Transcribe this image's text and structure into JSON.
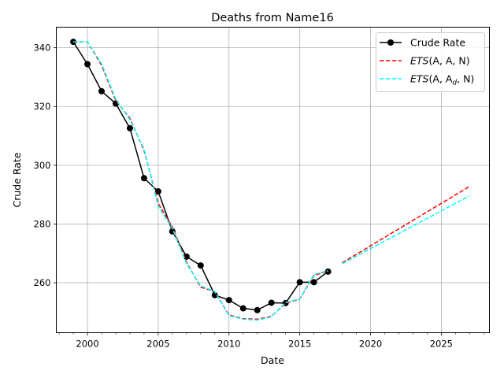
{
  "chart_data": {
    "type": "line",
    "title": "Deaths from Name16",
    "xlabel": "Date",
    "ylabel": "Crude Rate",
    "xlim": [
      1997.8,
      2028.4
    ],
    "ylim": [
      243,
      347
    ],
    "xticks": [
      2000,
      2005,
      2010,
      2015,
      2020,
      2025
    ],
    "yticks": [
      260,
      280,
      300,
      320,
      340
    ],
    "grid": true,
    "legend_position": "top-right",
    "series": [
      {
        "name": "Crude Rate",
        "color": "#000000",
        "style": "solid-markers",
        "x": [
          1999,
          2000,
          2001,
          2002,
          2003,
          2004,
          2005,
          2006,
          2007,
          2008,
          2009,
          2010,
          2011,
          2012,
          2013,
          2014,
          2015,
          2016,
          2017
        ],
        "y": [
          342.0,
          334.4,
          325.2,
          321.0,
          312.6,
          295.6,
          291.1,
          277.5,
          268.9,
          265.9,
          255.8,
          254.1,
          251.3,
          250.7,
          253.2,
          253.1,
          260.2,
          260.2,
          263.8
        ]
      },
      {
        "name": "ETS(A, A, N)",
        "label_main": "ETS",
        "label_args": "(A, A, N)",
        "color": "#ff0000",
        "style": "dashed",
        "segments": [
          {
            "x": [
              1999,
              2000,
              2001,
              2002,
              2003,
              2004,
              2005,
              2006,
              2007,
              2008,
              2009,
              2010,
              2011,
              2012,
              2013,
              2014,
              2015,
              2016,
              2017
            ],
            "y": [
              342.0,
              342.0,
              334.0,
              322.0,
              316.0,
              305.0,
              287.0,
              279.0,
              267.0,
              258.5,
              257.0,
              249.0,
              247.8,
              247.6,
              248.6,
              253.0,
              254.5,
              262.5,
              264.0
            ]
          },
          {
            "x": [
              2018,
              2027
            ],
            "y": [
              266.8,
              292.8
            ]
          }
        ]
      },
      {
        "name": "ETS(A, Ad, N)",
        "label_main": "ETS",
        "label_args": "(A, A",
        "label_sub": "d",
        "label_tail": ", N)",
        "color": "#00ffff",
        "style": "dashed",
        "segments": [
          {
            "x": [
              1999,
              2000,
              2001,
              2002,
              2003,
              2004,
              2005,
              2006,
              2007,
              2008,
              2009,
              2010,
              2011,
              2012,
              2013,
              2014,
              2015,
              2016,
              2017
            ],
            "y": [
              342.0,
              342.0,
              334.5,
              322.5,
              315.5,
              305.5,
              286.0,
              278.5,
              266.5,
              259.0,
              257.0,
              248.8,
              247.6,
              247.3,
              248.4,
              253.3,
              254.5,
              262.8,
              264.1
            ]
          },
          {
            "x": [
              2018,
              2027
            ],
            "y": [
              266.5,
              289.6
            ]
          }
        ]
      }
    ]
  }
}
